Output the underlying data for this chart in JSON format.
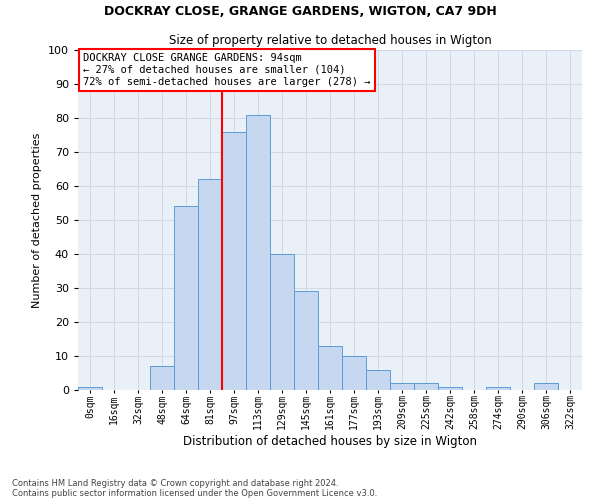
{
  "title1": "DOCKRAY CLOSE, GRANGE GARDENS, WIGTON, CA7 9DH",
  "title2": "Size of property relative to detached houses in Wigton",
  "xlabel": "Distribution of detached houses by size in Wigton",
  "ylabel": "Number of detached properties",
  "footnote1": "Contains HM Land Registry data © Crown copyright and database right 2024.",
  "footnote2": "Contains public sector information licensed under the Open Government Licence v3.0.",
  "bar_labels": [
    "0sqm",
    "16sqm",
    "32sqm",
    "48sqm",
    "64sqm",
    "81sqm",
    "97sqm",
    "113sqm",
    "129sqm",
    "145sqm",
    "161sqm",
    "177sqm",
    "193sqm",
    "209sqm",
    "225sqm",
    "242sqm",
    "258sqm",
    "274sqm",
    "290sqm",
    "306sqm",
    "322sqm"
  ],
  "bar_values": [
    1,
    0,
    0,
    7,
    54,
    62,
    76,
    81,
    40,
    29,
    13,
    10,
    6,
    2,
    2,
    1,
    0,
    1,
    0,
    2,
    0
  ],
  "bar_color": "#c5d8f0",
  "bar_edge_color": "#5b9bd5",
  "grid_color": "#d0d8e8",
  "background_color": "#eaf0f8",
  "vline_x": 6,
  "vline_color": "red",
  "annotation_text": "DOCKRAY CLOSE GRANGE GARDENS: 94sqm\n← 27% of detached houses are smaller (104)\n72% of semi-detached houses are larger (278) →",
  "annotation_box_color": "white",
  "annotation_box_edge": "red",
  "ylim": [
    0,
    100
  ],
  "yticks": [
    0,
    10,
    20,
    30,
    40,
    50,
    60,
    70,
    80,
    90,
    100
  ]
}
